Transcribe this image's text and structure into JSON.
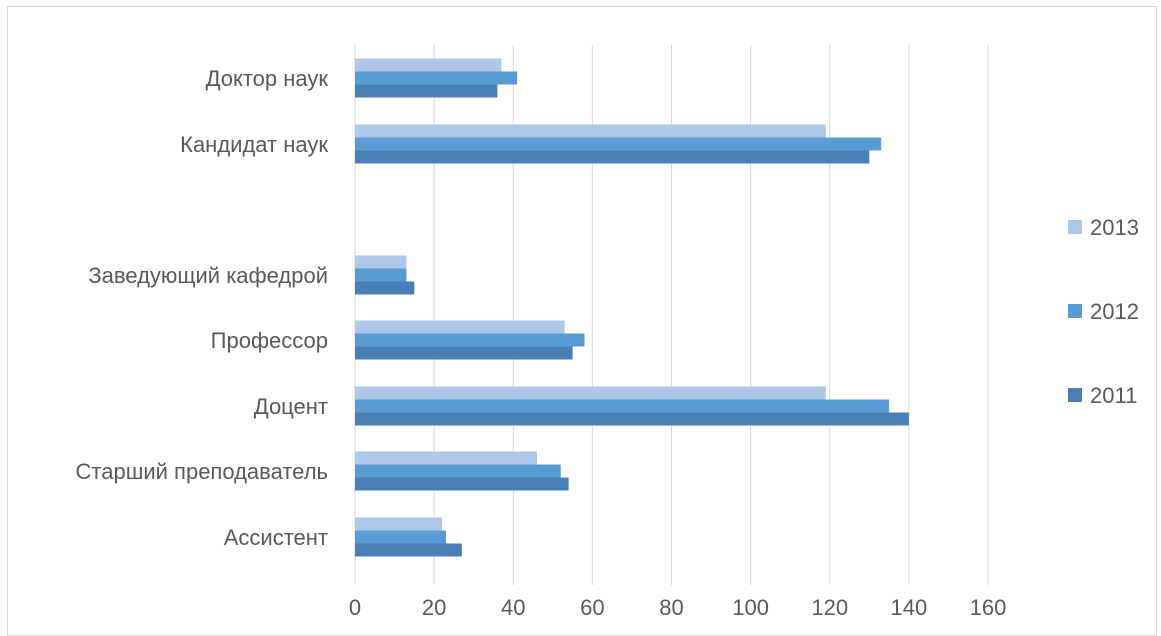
{
  "chart_data": {
    "type": "bar",
    "orientation": "horizontal",
    "title": "",
    "xlabel": "",
    "ylabel": "",
    "xlim": [
      0,
      160
    ],
    "x_ticks": [
      "0",
      "20",
      "40",
      "60",
      "80",
      "100",
      "120",
      "140",
      "160"
    ],
    "grid": true,
    "legend_position": "right",
    "categories": [
      "Доктор наук",
      "Кандидат наук",
      "",
      "Заведующий кафедрой",
      "Профессор",
      "Доцент",
      "Старший преподаватель",
      "Ассистент"
    ],
    "series": [
      {
        "name": "2013",
        "color": "#aec6e8",
        "values": [
          37,
          119,
          null,
          13,
          53,
          119,
          46,
          22
        ]
      },
      {
        "name": "2012",
        "color": "#5b9bd5",
        "values": [
          41,
          133,
          null,
          13,
          58,
          135,
          52,
          23
        ]
      },
      {
        "name": "2011",
        "color": "#4a7fb5",
        "values": [
          36,
          130,
          null,
          15,
          55,
          140,
          54,
          27
        ]
      }
    ],
    "legend": [
      "2013",
      "2012",
      "2011"
    ]
  }
}
